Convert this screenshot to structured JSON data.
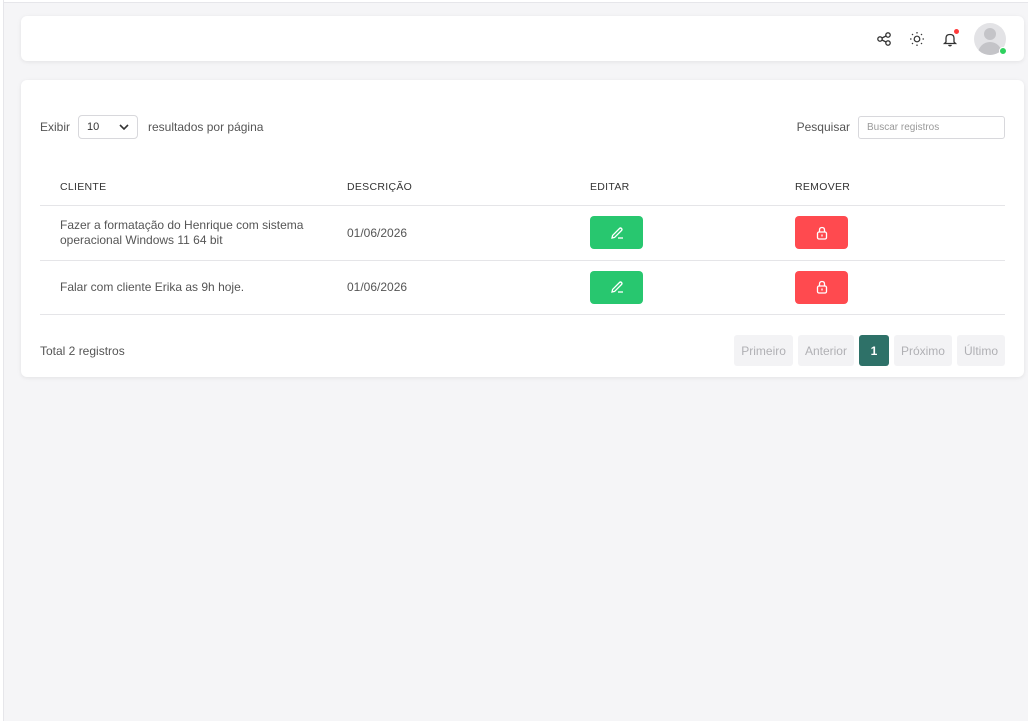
{
  "topbar": {
    "icons": [
      "share-icon",
      "sun-icon",
      "bell-icon",
      "avatar"
    ]
  },
  "controls": {
    "show_label": "Exibir",
    "page_size": "10",
    "per_page_label": "resultados por página",
    "search_label": "Pesquisar",
    "search_placeholder": "Buscar registros",
    "search_value": ""
  },
  "table": {
    "headers": [
      "CLIENTE",
      "DESCRIÇÃO",
      "EDITAR",
      "REMOVER"
    ],
    "rows": [
      {
        "cliente": "Fazer a formatação do Henrique com sistema operacional Windows 11 64 bit",
        "descricao": "01/06/2026"
      },
      {
        "cliente": "Falar com cliente Erika as 9h hoje.",
        "descricao": "01/06/2026"
      }
    ]
  },
  "footer": {
    "total": "Total 2 registros",
    "pagination": {
      "first": "Primeiro",
      "prev": "Anterior",
      "current": "1",
      "next": "Próximo",
      "last": "Último"
    }
  },
  "colors": {
    "edit": "#28c76f",
    "remove": "#ff4a4f",
    "active_page": "#2e7168",
    "online": "#2ed15e",
    "notification": "#ff3b3b"
  }
}
